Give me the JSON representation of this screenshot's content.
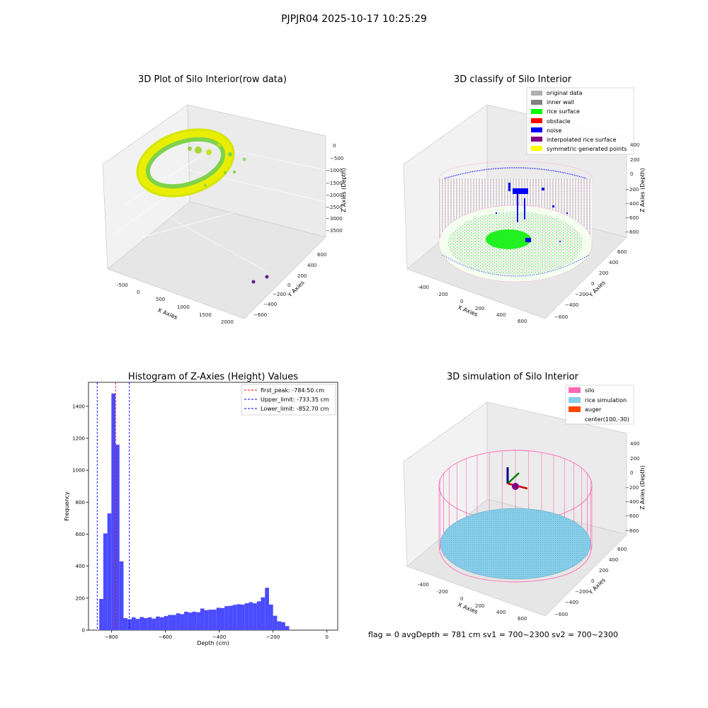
{
  "figure": {
    "suptitle": "PJPJR04 2025-10-17 10:25:29",
    "footer": "flag = 0     avgDepth = 781 cm  sv1 = 700~2300  sv2 = 700~2300"
  },
  "panels": {
    "raw": {
      "title": "3D Plot of Silo Interior(row data)",
      "xlabel": "X Axies",
      "ylabel": "Y Axies",
      "zlabel": "Z Axies (Depth)",
      "xticks": [
        "-500",
        "0",
        "500",
        "1000",
        "1500",
        "2000"
      ],
      "yticks": [
        "600",
        "400",
        "200",
        "0",
        "−200",
        "−400",
        "−600"
      ],
      "zticks": [
        "0",
        "−500",
        "−1000",
        "−1500",
        "−2000",
        "−2500",
        "−3000",
        "−3500"
      ]
    },
    "classify": {
      "title": "3D classify of Silo Interior",
      "xlabel": "X Axies",
      "ylabel": "Y Axies",
      "zlabel": "Z Axies (Depth)",
      "xticks": [
        "-400",
        "-200",
        "0",
        "200",
        "400",
        "600"
      ],
      "yticks": [
        "600",
        "400",
        "200",
        "0",
        "−200",
        "−400",
        "−600"
      ],
      "zticks": [
        "400",
        "200",
        "0",
        "−200",
        "−400",
        "−600",
        "−800"
      ],
      "legend": [
        {
          "label": "original data",
          "color": "#b0b0b0"
        },
        {
          "label": "inner wall",
          "color": "#808080"
        },
        {
          "label": "rice surface",
          "color": "#00ff00"
        },
        {
          "label": "obstacle",
          "color": "#ff0000"
        },
        {
          "label": "noise",
          "color": "#0000ff"
        },
        {
          "label": "interpolated rice surface",
          "color": "#800080"
        },
        {
          "label": "symmetric generated points",
          "color": "#ffff00"
        }
      ]
    },
    "simulation": {
      "title": "3D simulation of Silo Interior",
      "xlabel": "X Axies",
      "ylabel": "Y Axies",
      "zlabel": "Z Axies (Depth)",
      "xticks": [
        "-400",
        "-200",
        "0",
        "200",
        "400",
        "600"
      ],
      "yticks": [
        "600",
        "400",
        "200",
        "0",
        "−200",
        "−400",
        "−600"
      ],
      "zticks": [
        "400",
        "200",
        "0",
        "−200",
        "−400",
        "−600",
        "−800"
      ],
      "legend": [
        {
          "label": "silo",
          "color": "#ff69b4"
        },
        {
          "label": "rice simulation",
          "color": "#87ceeb"
        },
        {
          "label": "auger",
          "color": "#ff4500"
        },
        {
          "label": "center(100,-30)",
          "color": ""
        }
      ]
    }
  },
  "chart_data": {
    "type": "bar",
    "title": "Histogram of Z-Axies (Height) Values",
    "xlabel": "Depth (cm)",
    "ylabel": "Frequency",
    "xlim": [
      -885,
      40
    ],
    "ylim": [
      0,
      1550
    ],
    "xticks": [
      -800,
      -600,
      -400,
      -200,
      0
    ],
    "yticks": [
      0,
      200,
      400,
      600,
      800,
      1000,
      1200,
      1400
    ],
    "bar_color": "#4b4bff",
    "bins": {
      "start": -845,
      "width": 15,
      "counts": [
        195,
        605,
        730,
        1480,
        1160,
        430,
        75,
        68,
        80,
        70,
        82,
        75,
        80,
        72,
        85,
        80,
        88,
        95,
        95,
        105,
        100,
        115,
        110,
        115,
        112,
        135,
        125,
        128,
        128,
        140,
        138,
        150,
        152,
        158,
        162,
        160,
        168,
        175,
        168,
        180,
        205,
        265,
        160,
        90,
        55,
        50,
        25
      ]
    },
    "vlines": [
      {
        "label": "first_peak: -784.50 cm",
        "x": -784.5,
        "color": "#ff0000"
      },
      {
        "label": "Upper_limit: -733.35 cm",
        "x": -733.35,
        "color": "#0000ff"
      },
      {
        "label": "Lower_limit: -852.70 cm",
        "x": -852.7,
        "color": "#0000ff"
      }
    ],
    "legend_position": "top-right"
  }
}
